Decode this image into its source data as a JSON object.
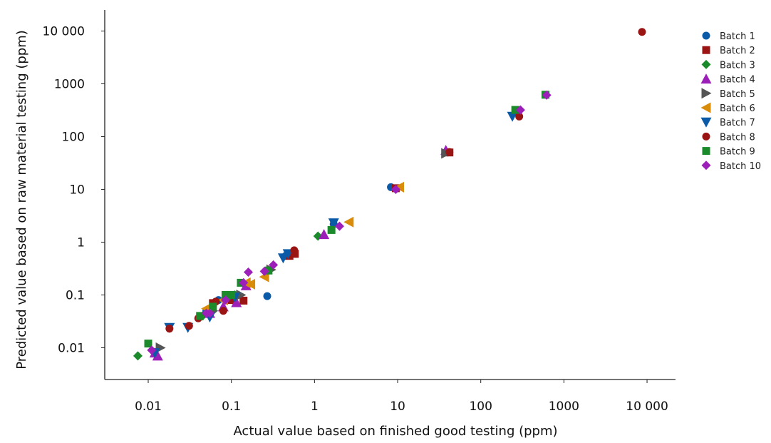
{
  "chart_data": {
    "type": "scatter",
    "title": "",
    "xlabel": "Actual value based on finished good testing (ppm)",
    "ylabel": "Predicted value based on raw material testing (ppm)",
    "xscale": "log",
    "yscale": "log",
    "xlim": [
      0.003,
      22000
    ],
    "ylim": [
      0.0025,
      25000
    ],
    "grid": false,
    "legend_position": "right",
    "xticks": [
      {
        "v": 0.01,
        "label": "0.01"
      },
      {
        "v": 0.1,
        "label": "0.1"
      },
      {
        "v": 1,
        "label": "1"
      },
      {
        "v": 10,
        "label": "10"
      },
      {
        "v": 100,
        "label": "100"
      },
      {
        "v": 1000,
        "label": "1000"
      },
      {
        "v": 10000,
        "label": "10 000"
      }
    ],
    "yticks": [
      {
        "v": 0.01,
        "label": "0.01"
      },
      {
        "v": 0.1,
        "label": "0.1"
      },
      {
        "v": 1,
        "label": "1"
      },
      {
        "v": 10,
        "label": "10"
      },
      {
        "v": 100,
        "label": "100"
      },
      {
        "v": 1000,
        "label": "1000"
      },
      {
        "v": 10000,
        "label": "10 000"
      }
    ],
    "series": [
      {
        "name": "Batch 1",
        "marker": "circle",
        "color": "#0b5aa8",
        "points": [
          [
            8.3,
            11
          ],
          [
            0.27,
            0.095
          ],
          [
            40,
            50
          ],
          [
            0.07,
            0.08
          ],
          [
            0.05,
            0.05
          ],
          [
            1.7,
            2.2
          ],
          [
            0.45,
            0.55
          ],
          [
            0.12,
            0.1
          ]
        ]
      },
      {
        "name": "Batch 2",
        "marker": "square",
        "color": "#9b1414",
        "points": [
          [
            0.14,
            0.078
          ],
          [
            0.58,
            0.6
          ],
          [
            0.06,
            0.07
          ],
          [
            280,
            310
          ],
          [
            0.5,
            0.55
          ],
          [
            42,
            50
          ],
          [
            0.1,
            0.08
          ],
          [
            9.5,
            10.5
          ]
        ]
      },
      {
        "name": "Batch 3",
        "marker": "diamond",
        "color": "#1a8a2a",
        "points": [
          [
            0.0075,
            0.007
          ],
          [
            1.1,
            1.3
          ],
          [
            0.09,
            0.09
          ],
          [
            0.045,
            0.04
          ],
          [
            0.11,
            0.1
          ],
          [
            0.06,
            0.05
          ]
        ]
      },
      {
        "name": "Batch 4",
        "marker": "triangle-up",
        "color": "#9b1fb8",
        "points": [
          [
            0.013,
            0.007
          ],
          [
            0.115,
            0.072
          ],
          [
            1.3,
            1.4
          ],
          [
            0.08,
            0.06
          ],
          [
            0.012,
            0.008
          ],
          [
            38,
            55
          ],
          [
            0.055,
            0.045
          ],
          [
            0.15,
            0.15
          ]
        ]
      },
      {
        "name": "Batch 5",
        "marker": "triangle-right",
        "color": "#555555",
        "points": [
          [
            0.014,
            0.01
          ],
          [
            0.13,
            0.1
          ],
          [
            38,
            48
          ],
          [
            0.06,
            0.05
          ],
          [
            0.3,
            0.3
          ],
          [
            0.1,
            0.095
          ]
        ]
      },
      {
        "name": "Batch 6",
        "marker": "triangle-left",
        "color": "#d98c0a",
        "points": [
          [
            0.17,
            0.16
          ],
          [
            0.25,
            0.22
          ],
          [
            2.6,
            2.4
          ],
          [
            10.5,
            11
          ],
          [
            0.05,
            0.055
          ],
          [
            0.15,
            0.17
          ],
          [
            0.08,
            0.08
          ]
        ]
      },
      {
        "name": "Batch 7",
        "marker": "triangle-down",
        "color": "#0b5aa8",
        "points": [
          [
            0.018,
            0.024
          ],
          [
            0.03,
            0.024
          ],
          [
            0.055,
            0.038
          ],
          [
            0.42,
            0.5
          ],
          [
            0.48,
            0.6
          ],
          [
            1.7,
            2.3
          ],
          [
            240,
            240
          ],
          [
            0.012,
            0.008
          ],
          [
            0.11,
            0.09
          ]
        ]
      },
      {
        "name": "Batch 8",
        "marker": "circle",
        "color": "#9b1414",
        "points": [
          [
            0.018,
            0.023
          ],
          [
            0.031,
            0.026
          ],
          [
            0.04,
            0.036
          ],
          [
            0.08,
            0.05
          ],
          [
            0.57,
            0.7
          ],
          [
            8700,
            9600
          ],
          [
            290,
            240
          ],
          [
            0.065,
            0.075
          ],
          [
            0.085,
            0.09
          ],
          [
            42,
            51
          ]
        ]
      },
      {
        "name": "Batch 9",
        "marker": "square",
        "color": "#1a8a2a",
        "points": [
          [
            0.01,
            0.012
          ],
          [
            0.042,
            0.04
          ],
          [
            0.13,
            0.17
          ],
          [
            0.28,
            0.29
          ],
          [
            1.6,
            1.7
          ],
          [
            260,
            320
          ],
          [
            600,
            620
          ],
          [
            0.1,
            0.1
          ],
          [
            0.06,
            0.06
          ],
          [
            0.085,
            0.1
          ]
        ]
      },
      {
        "name": "Batch 10",
        "marker": "diamond",
        "color": "#9b1fb8",
        "points": [
          [
            0.011,
            0.009
          ],
          [
            0.05,
            0.045
          ],
          [
            0.16,
            0.27
          ],
          [
            0.32,
            0.37
          ],
          [
            0.14,
            0.17
          ],
          [
            0.25,
            0.28
          ],
          [
            2,
            2
          ],
          [
            9.5,
            10
          ],
          [
            300,
            320
          ],
          [
            620,
            610
          ],
          [
            0.085,
            0.08
          ],
          [
            0.055,
            0.045
          ]
        ]
      }
    ]
  }
}
